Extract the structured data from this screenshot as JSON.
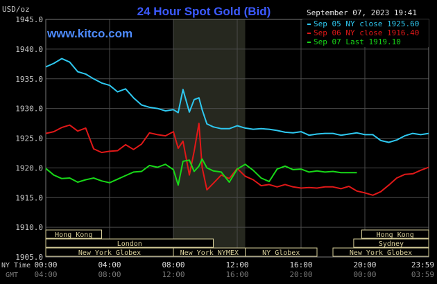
{
  "chart_data": {
    "type": "line",
    "title": "24 Hour Spot Gold (Bid)",
    "ylabel": "USD/oz",
    "ylim": [
      1905,
      1945
    ],
    "yticks": [
      "1945.0",
      "1940.0",
      "1935.0",
      "1930.0",
      "1925.0",
      "1920.0",
      "1915.0",
      "1910.0",
      "1905.0"
    ],
    "xlim": [
      0,
      24
    ],
    "ny_time_label": "NY Time",
    "gmt_label": "GMT",
    "xticks_ny": [
      "00:00",
      "04:00",
      "08:00",
      "12:00",
      "16:00",
      "20:00",
      "23:59"
    ],
    "xticks_gmt": [
      "04:00",
      "08:00",
      "12:00",
      "16:00",
      "20:00",
      "00:00",
      "03:59"
    ],
    "timestamp": "September 07, 2023 19:41",
    "watermark": "www.kitco.com",
    "shaded_region": [
      8.0,
      12.5
    ],
    "grid": true,
    "legend_position": "top-right",
    "colors": {
      "background": "#000000",
      "grid": "#4a4a4a",
      "axis_text": "#c8c8c8",
      "title": "#3c5aff",
      "watermark": "#4e8cff",
      "shade": "#26281f",
      "session_box": "#d8cf9a"
    },
    "series": [
      {
        "name": "Sep 05 NY close 1925.60",
        "color": "#2ec8f0",
        "x": [
          0,
          0.5,
          1.0,
          1.5,
          2.0,
          2.5,
          3.0,
          3.5,
          4.0,
          4.5,
          5.0,
          5.5,
          6.0,
          6.5,
          7.0,
          7.5,
          8.0,
          8.3,
          8.6,
          9.0,
          9.3,
          9.6,
          9.8,
          10.1,
          10.5,
          11.0,
          11.5,
          12.0,
          12.5,
          13.0,
          13.5,
          14.0,
          14.5,
          15.0,
          15.5,
          16.0,
          16.5,
          17.0,
          17.5,
          18.0,
          18.5,
          19.0,
          19.5,
          20.0,
          20.5,
          21.0,
          21.5,
          22.0,
          22.5,
          23.0,
          23.5,
          24.0
        ],
        "values": [
          1937.0,
          1937.6,
          1938.4,
          1937.8,
          1936.2,
          1935.8,
          1935.0,
          1934.3,
          1933.9,
          1932.8,
          1933.3,
          1931.8,
          1930.6,
          1930.2,
          1930.0,
          1929.6,
          1929.8,
          1929.3,
          1933.2,
          1929.4,
          1931.5,
          1931.8,
          1929.8,
          1927.4,
          1926.9,
          1926.6,
          1926.6,
          1927.1,
          1926.7,
          1926.5,
          1926.6,
          1926.5,
          1926.3,
          1926.0,
          1925.9,
          1926.1,
          1925.5,
          1925.7,
          1925.8,
          1925.8,
          1925.5,
          1925.7,
          1925.9,
          1925.6,
          1925.6,
          1924.6,
          1924.3,
          1924.7,
          1925.4,
          1925.8,
          1925.6,
          1925.8
        ]
      },
      {
        "name": "Sep 06 NY close 1916.40",
        "color": "#e01818",
        "x": [
          0,
          0.5,
          1.0,
          1.5,
          2.0,
          2.5,
          3.0,
          3.5,
          4.0,
          4.5,
          5.0,
          5.5,
          6.0,
          6.5,
          7.0,
          7.5,
          8.0,
          8.3,
          8.6,
          9.0,
          9.3,
          9.6,
          9.8,
          10.1,
          10.5,
          11.0,
          11.5,
          12.0,
          12.5,
          13.0,
          13.5,
          14.0,
          14.5,
          15.0,
          15.5,
          16.0,
          16.5,
          17.0,
          17.5,
          18.0,
          18.5,
          19.0,
          19.5,
          20.0,
          20.5,
          21.0,
          21.5,
          22.0,
          22.5,
          23.0,
          23.5,
          24.0
        ],
        "values": [
          1925.8,
          1926.1,
          1926.8,
          1927.2,
          1926.2,
          1926.7,
          1923.2,
          1922.6,
          1922.8,
          1922.9,
          1923.9,
          1923.1,
          1924.0,
          1925.9,
          1925.6,
          1925.4,
          1926.1,
          1923.3,
          1924.5,
          1918.8,
          1922.8,
          1927.5,
          1920.1,
          1916.3,
          1917.4,
          1918.8,
          1918.2,
          1919.9,
          1918.6,
          1918.0,
          1917.0,
          1917.2,
          1916.8,
          1917.2,
          1916.8,
          1916.6,
          1916.7,
          1916.6,
          1916.8,
          1916.8,
          1916.5,
          1916.9,
          1916.1,
          1915.8,
          1915.4,
          1916.0,
          1917.1,
          1918.3,
          1918.9,
          1919.0,
          1919.6,
          1920.1
        ]
      },
      {
        "name": "Sep 07 Last 1919.10",
        "color": "#18d818",
        "x": [
          0,
          0.5,
          1.0,
          1.5,
          2.0,
          2.5,
          3.0,
          3.5,
          4.0,
          4.5,
          5.0,
          5.5,
          6.0,
          6.5,
          7.0,
          7.5,
          8.0,
          8.3,
          8.6,
          9.0,
          9.3,
          9.6,
          9.8,
          10.1,
          10.5,
          11.0,
          11.5,
          12.0,
          12.5,
          13.0,
          13.5,
          14.0,
          14.5,
          15.0,
          15.5,
          16.0,
          16.5,
          17.0,
          17.5,
          18.0,
          18.5,
          19.0,
          19.5
        ],
        "values": [
          1919.9,
          1918.8,
          1918.2,
          1918.3,
          1917.6,
          1918.0,
          1918.3,
          1917.8,
          1917.5,
          1918.1,
          1918.7,
          1919.3,
          1919.4,
          1920.4,
          1920.1,
          1920.6,
          1919.7,
          1917.1,
          1921.1,
          1921.3,
          1919.4,
          1920.3,
          1921.5,
          1920.0,
          1919.5,
          1919.3,
          1917.6,
          1919.8,
          1920.6,
          1919.6,
          1918.3,
          1917.7,
          1919.8,
          1920.3,
          1919.7,
          1919.8,
          1919.3,
          1919.5,
          1919.3,
          1919.4,
          1919.2,
          1919.2,
          1919.2
        ]
      }
    ],
    "sessions": [
      {
        "label": "Hong Kong",
        "row": 0,
        "start": 0,
        "end": 3.5
      },
      {
        "label": "London",
        "row": 1,
        "start": 0,
        "end": 10.5
      },
      {
        "label": "New York Globex",
        "row": 2,
        "start": 0,
        "end": 8.0
      },
      {
        "label": "New York NYMEX",
        "row": 2,
        "start": 8.0,
        "end": 12.5
      },
      {
        "label": "NY Globex",
        "row": 2,
        "start": 12.5,
        "end": 17.0
      },
      {
        "label": "Hong Kong",
        "row": 0,
        "start": 19.8,
        "end": 24
      },
      {
        "label": "Sydney",
        "row": 1,
        "start": 19.3,
        "end": 24
      },
      {
        "label": "New York Globex",
        "row": 2,
        "start": 18.0,
        "end": 24
      }
    ]
  }
}
